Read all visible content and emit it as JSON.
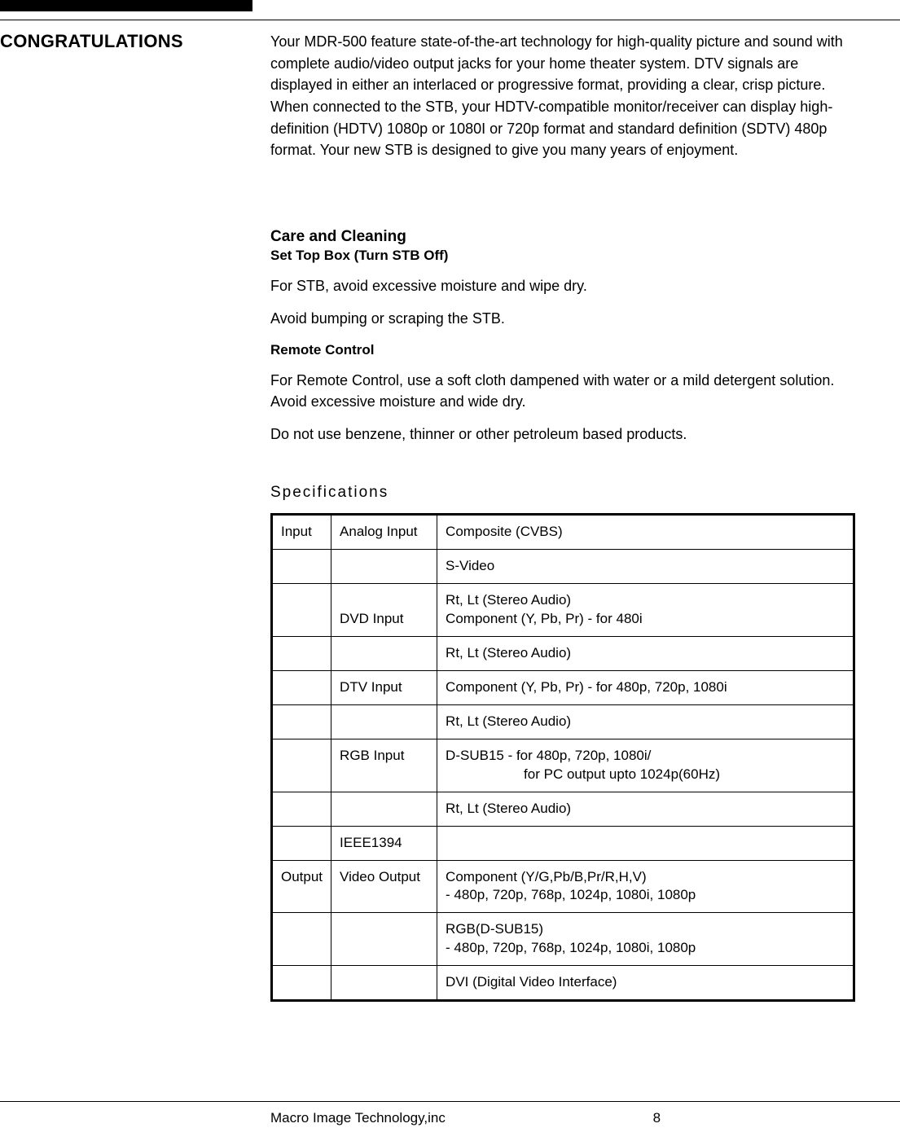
{
  "heading": "CONGRATULATIONS",
  "intro": "Your MDR-500 feature state-of-the-art technology for high-quality picture and sound with complete audio/video output jacks for your home theater system. DTV signals are displayed in either an interlaced or progressive format, providing a clear, crisp picture. When connected to the STB, your HDTV-compatible monitor/receiver can display high-definition (HDTV) 1080p or 1080I or 720p format and standard definition (SDTV) 480p  format. Your new STB is designed to give you many years of enjoyment.",
  "care": {
    "title": "Care and Cleaning",
    "subtitle": "Set Top Box (Turn STB Off)",
    "p1": "For STB, avoid excessive moisture and wipe dry.",
    "p2": "Avoid bumping or scraping the STB.",
    "remote_title": "Remote Control",
    "p3": "For Remote Control, use a soft cloth dampened with water or a mild detergent solution. Avoid excessive moisture and wide dry.",
    "p4": "Do not use benzene, thinner or other petroleum based products."
  },
  "spec_heading": "Specifications",
  "table": {
    "rows": [
      {
        "c1": "Input",
        "c2": "Analog Input",
        "c3": "Composite (CVBS)"
      },
      {
        "c1": "",
        "c2": "",
        "c3": "S-Video"
      },
      {
        "c1": "",
        "c2": "DVD Input",
        "c3_a": "Rt, Lt (Stereo Audio)",
        "c3_b": "Component (Y, Pb, Pr) - for 480i",
        "dvd_style": true
      },
      {
        "c1": "",
        "c2": "",
        "c3": "Rt, Lt (Stereo Audio)"
      },
      {
        "c1": "",
        "c2": "DTV Input",
        "c3": "Component (Y, Pb, Pr) - for 480p, 720p, 1080i"
      },
      {
        "c1": "",
        "c2": "",
        "c3": "Rt, Lt (Stereo Audio)"
      },
      {
        "c1": "",
        "c2": "RGB Input",
        "c3_a": "D-SUB15 - for 480p, 720p, 1080i/",
        "c3_b_indent": "for PC output upto 1024p(60Hz)",
        "rgb_style": true
      },
      {
        "c1": "",
        "c2": "",
        "c3": "Rt, Lt (Stereo Audio)"
      },
      {
        "c1": "",
        "c2": "IEEE1394",
        "c3": ""
      },
      {
        "c1": "Output",
        "c2": "Video Output",
        "c3_a": "Component (Y/G,Pb/B,Pr/R,H,V)",
        "c3_b": "- 480p, 720p, 768p, 1024p, 1080i, 1080p",
        "multi": true
      },
      {
        "c1": "",
        "c2": "",
        "c3_a": "RGB(D-SUB15)",
        "c3_b": "- 480p, 720p, 768p, 1024p, 1080i, 1080p",
        "multi": true
      },
      {
        "c1": "",
        "c2": "",
        "c3": "DVI (Digital Video Interface)"
      }
    ]
  },
  "footer": {
    "company": "Macro Image Technology,inc",
    "page": "8"
  }
}
